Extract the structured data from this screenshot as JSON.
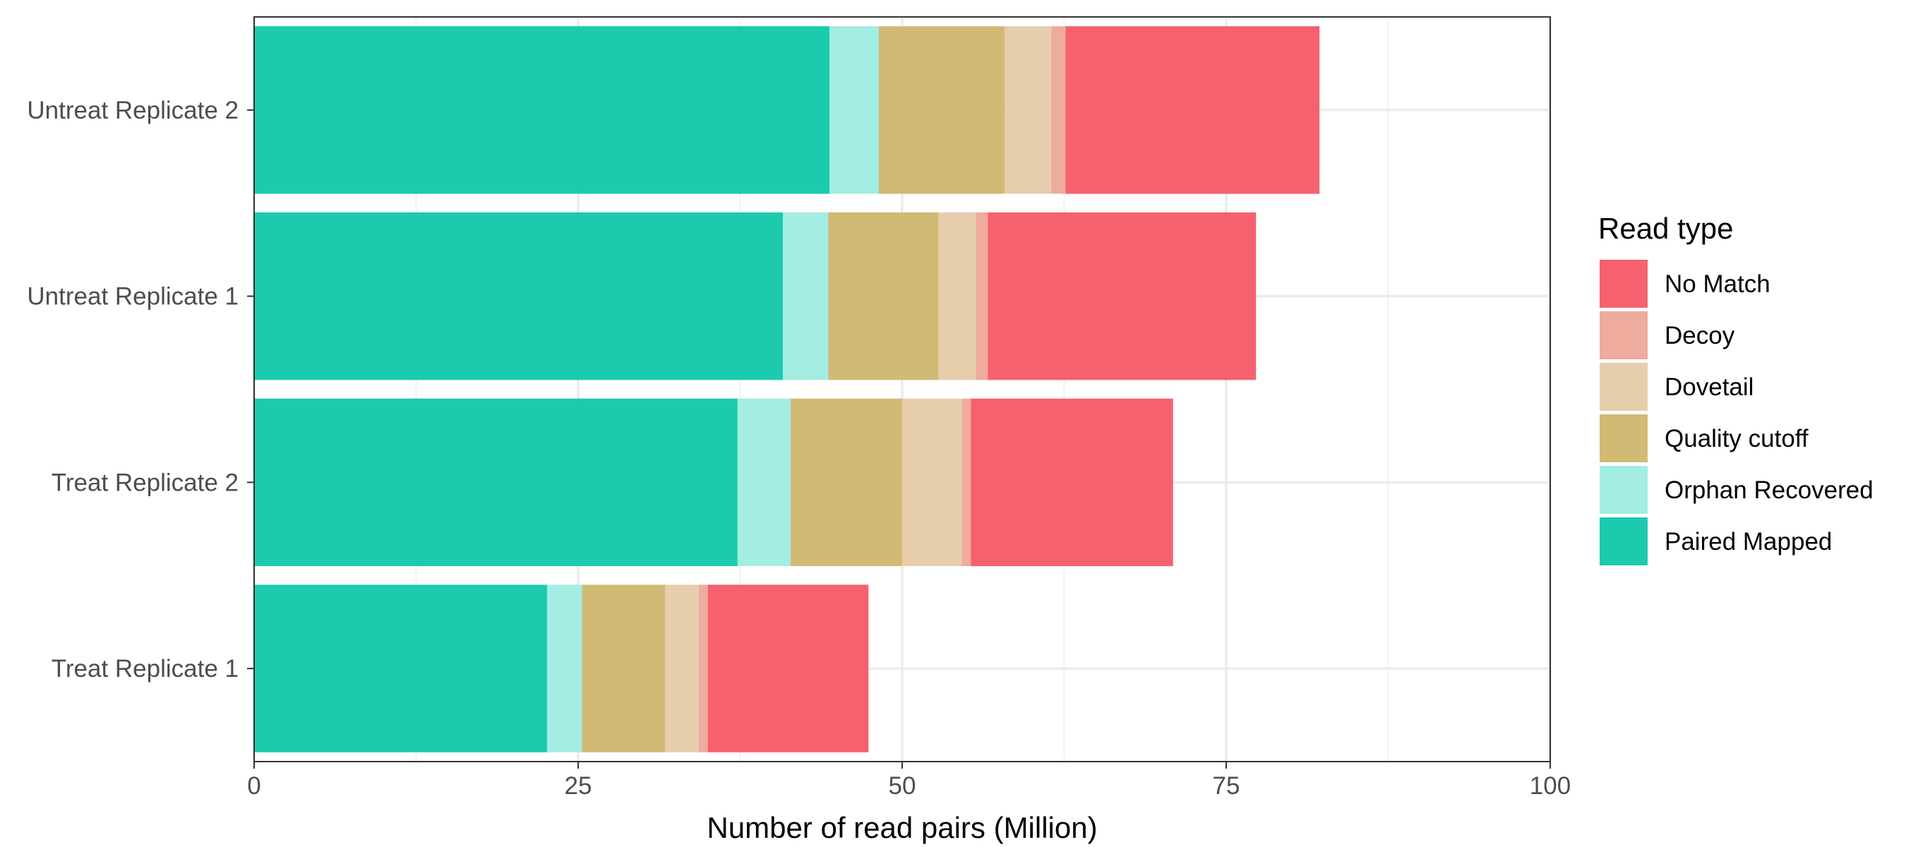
{
  "chart_data": {
    "type": "bar",
    "orientation": "horizontal",
    "stacked": true,
    "categories": [
      "Treat Replicate 1",
      "Treat Replicate 2",
      "Untreat Replicate 1",
      "Untreat Replicate 2"
    ],
    "series": [
      {
        "name": "Paired Mapped",
        "color": "#1ccaae",
        "values": [
          22.6,
          37.3,
          40.8,
          44.4
        ]
      },
      {
        "name": "Orphan Recovered",
        "color": "#a3ede2",
        "values": [
          2.7,
          4.1,
          3.5,
          3.8
        ]
      },
      {
        "name": "Quality cutoff",
        "color": "#d1ba74",
        "values": [
          6.4,
          8.6,
          8.5,
          9.7
        ]
      },
      {
        "name": "Dovetail",
        "color": "#e6ceac",
        "values": [
          2.6,
          4.6,
          2.9,
          3.6
        ]
      },
      {
        "name": "Decoy",
        "color": "#eeab9e",
        "values": [
          0.7,
          0.7,
          0.9,
          1.1
        ]
      },
      {
        "name": "No Match",
        "color": "#f5616e",
        "values": [
          12.4,
          15.6,
          20.7,
          19.6
        ]
      }
    ],
    "xlabel": "Number of read pairs (Million)",
    "ylabel": "",
    "xlim": [
      0,
      100
    ],
    "xticks": [
      0,
      25,
      50,
      75,
      100
    ],
    "xtick_labels": [
      "0",
      "25",
      "50",
      "75",
      "100"
    ],
    "grid": true,
    "legend": {
      "title": "Read type",
      "placement": "right",
      "order": [
        "No Match",
        "Decoy",
        "Dovetail",
        "Quality cutoff",
        "Orphan Recovered",
        "Paired Mapped"
      ]
    }
  }
}
